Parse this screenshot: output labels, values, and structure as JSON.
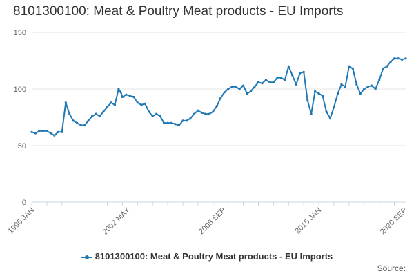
{
  "title": "8101300100: Meat & Poultry Meat products - EU Imports",
  "source_label": "Source:",
  "colors": {
    "series": "#1f77b4",
    "grid": "#e6e6e6",
    "axis": "#ccd6eb",
    "text": "#666666"
  },
  "chart_data": {
    "type": "line",
    "title": "8101300100: Meat & Poultry Meat products - EU Imports",
    "xlabel": "",
    "ylabel": "",
    "ylim": [
      0,
      150
    ],
    "yticks": [
      0,
      50,
      100,
      150
    ],
    "xlim": [
      1996.0,
      2020.75
    ],
    "xticks": [
      {
        "value": 1996.0,
        "label": "1996 JAN"
      },
      {
        "value": 2002.33,
        "label": "2002 MAY"
      },
      {
        "value": 2008.67,
        "label": "2008 SEP"
      },
      {
        "value": 2015.0,
        "label": "2015 JAN"
      },
      {
        "value": 2020.67,
        "label": "2020 SEP"
      }
    ],
    "grid": true,
    "legend": "bottom",
    "series": [
      {
        "name": "8101300100: Meat & Poultry Meat products - EU Imports",
        "x": [
          1996.0,
          1996.25,
          1996.5,
          1996.75,
          1997.0,
          1997.25,
          1997.5,
          1997.75,
          1998.0,
          1998.25,
          1998.5,
          1998.75,
          1999.0,
          1999.25,
          1999.5,
          1999.75,
          2000.0,
          2000.25,
          2000.5,
          2000.75,
          2001.0,
          2001.25,
          2001.5,
          2001.75,
          2001.9,
          2002.0,
          2002.25,
          2002.5,
          2002.75,
          2003.0,
          2003.25,
          2003.5,
          2003.75,
          2004.0,
          2004.25,
          2004.5,
          2004.75,
          2005.0,
          2005.25,
          2005.5,
          2005.75,
          2006.0,
          2006.25,
          2006.5,
          2006.75,
          2007.0,
          2007.25,
          2007.5,
          2007.75,
          2008.0,
          2008.25,
          2008.5,
          2008.75,
          2009.0,
          2009.25,
          2009.5,
          2009.75,
          2010.0,
          2010.25,
          2010.5,
          2010.75,
          2011.0,
          2011.25,
          2011.5,
          2011.75,
          2012.0,
          2012.25,
          2012.5,
          2012.75,
          2013.0,
          2013.25,
          2013.5,
          2013.75,
          2014.0,
          2014.25,
          2014.5,
          2014.75,
          2015.0,
          2015.25,
          2015.5,
          2015.75,
          2016.0,
          2016.25,
          2016.5,
          2016.75,
          2017.0,
          2017.25,
          2017.5,
          2017.75,
          2018.0,
          2018.25,
          2018.5,
          2018.75,
          2019.0,
          2019.25,
          2019.5,
          2019.75,
          2020.0,
          2020.25,
          2020.5,
          2020.75
        ],
        "y": [
          62,
          61,
          63,
          63,
          63,
          61,
          59,
          62,
          62,
          88,
          78,
          72,
          70,
          68,
          68,
          72,
          76,
          78,
          76,
          80,
          84,
          88,
          86,
          100,
          97,
          93,
          95,
          94,
          93,
          88,
          86,
          87,
          80,
          76,
          78,
          76,
          70,
          70,
          70,
          69,
          68,
          72,
          72,
          74,
          78,
          81,
          79,
          78,
          78,
          80,
          85,
          92,
          97,
          100,
          102,
          102,
          100,
          103,
          96,
          98,
          102,
          106,
          105,
          108,
          106,
          106,
          110,
          110,
          108,
          120,
          112,
          104,
          114,
          115,
          90,
          78,
          98,
          96,
          94,
          80,
          74,
          84,
          96,
          104,
          102,
          120,
          118,
          104,
          96,
          100,
          102,
          103,
          100,
          108,
          118,
          120,
          124,
          127,
          127,
          126,
          127
        ]
      }
    ]
  }
}
